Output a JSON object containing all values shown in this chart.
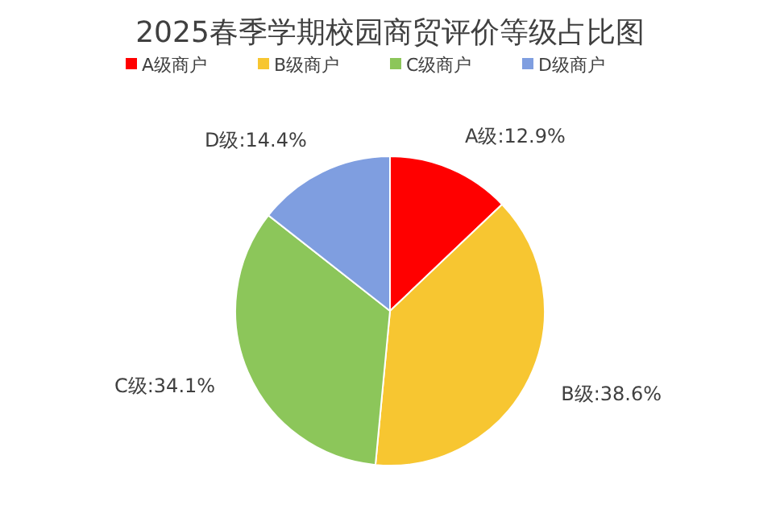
{
  "chart_data": {
    "type": "pie",
    "title": "2025春季学期校园商贸评价等级占比图",
    "categories": [
      "A级商户",
      "B级商户",
      "C级商户",
      "D级商户"
    ],
    "values": [
      12.9,
      38.6,
      34.1,
      14.4
    ],
    "colors": [
      "#ff0000",
      "#f7c631",
      "#8cc65a",
      "#7f9ee0"
    ],
    "value_labels": [
      "A级:12.9%",
      "B级:38.6%",
      "C级:34.1%",
      "D级:14.4%"
    ],
    "legend": "top"
  }
}
